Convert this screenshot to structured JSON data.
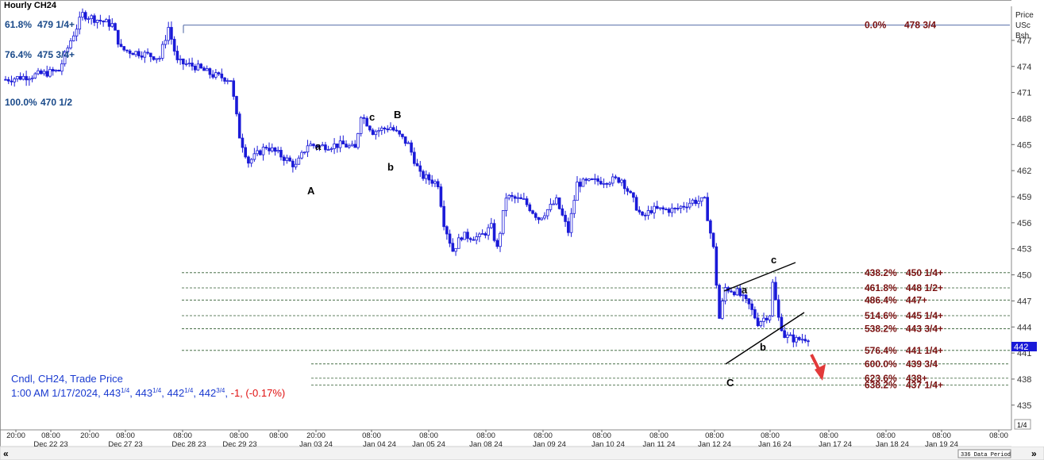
{
  "chart_data": {
    "type": "candlestick",
    "title": "Hourly CH24",
    "price_units": [
      "Price",
      "USc",
      "Bsh"
    ],
    "ylim": [
      433.5,
      481
    ],
    "y_ticks": [
      "477",
      "474",
      "471",
      "468",
      "465",
      "462",
      "459",
      "456",
      "453",
      "450",
      "447",
      "444",
      "441",
      "438",
      "435"
    ],
    "y_tick_values": [
      477,
      474,
      471,
      468,
      465,
      462,
      459,
      456,
      453,
      450,
      447,
      444,
      441,
      438,
      435
    ],
    "current_price": 442.75,
    "current_price_label": "442",
    "time_labels": [
      "20:00",
      "08:00",
      "20:00",
      "08:00",
      "08:00",
      "08:00",
      "08:00",
      "20:00",
      "08:00",
      "08:00",
      "08:00",
      "08:00",
      "08:00",
      "08:00",
      "08:00",
      "08:00",
      "08:00",
      "08:00",
      "08:00",
      "08:00",
      "08:00"
    ],
    "date_labels": [
      "Dec 22 23",
      "Dec 27 23",
      "Dec 28 23",
      "Dec 29 23",
      "Jan 03 24",
      "Jan 04 24",
      "Jan 05 24",
      "Jan 08 24",
      "Jan 09 24",
      "Jan 10 24",
      "Jan 11 24",
      "Jan 12 24",
      "Jan 16 24",
      "Jan 17 24",
      "Jan 18 24",
      "Jan 19 24"
    ],
    "status_text": "336 Data Period",
    "zoom_label": "1/4",
    "info": {
      "line1": "Cndl, CH24, Trade Price",
      "line2_prefix": "1:00 AM 1/17/2024, 443",
      "open_frac": "1/4",
      "high": "443",
      "high_frac": "1/4",
      "low": "442",
      "low_frac": "1/4",
      "close": "442",
      "close_frac": "3/4",
      "change": "-1, (-0.17%)"
    },
    "left_fibs": [
      {
        "pct": "61.8%",
        "price": "479 1/4+"
      },
      {
        "pct": "76.4%",
        "price": "475 3/4+"
      },
      {
        "pct": "100.0%",
        "price": "470 1/2"
      }
    ],
    "top_fib": {
      "pct": "0.0%",
      "price": "478 3/4",
      "value": 478.75
    },
    "right_fibs": [
      {
        "pct": "438.2%",
        "price": "450 1/4+",
        "value": 450.25
      },
      {
        "pct": "461.8%",
        "price": "448 1/2+",
        "value": 448.5
      },
      {
        "pct": "486.4%",
        "price": "447+",
        "value": 447.1
      },
      {
        "pct": "514.6%",
        "price": "445 1/4+",
        "value": 445.3
      },
      {
        "pct": "538.2%",
        "price": "443 3/4+",
        "value": 443.8
      },
      {
        "pct": "576.4%",
        "price": "441 1/4+",
        "value": 441.3
      },
      {
        "pct": "600.0%",
        "price": "439 3/4",
        "value": 439.75
      },
      {
        "pct": "623.6%",
        "price": "438+",
        "value": 438.1
      },
      {
        "pct": "638.2%",
        "price": "437 1/4+",
        "value": 437.3
      }
    ],
    "wave_labels": [
      "A",
      "a",
      "b",
      "c",
      "B",
      "a",
      "b",
      "c",
      "C"
    ],
    "colors": {
      "up_candle": "#1a1ad8",
      "down_candle": "#1a1ad8",
      "fib_text": "#7a1010",
      "left_fib_text": "#1a4a8a",
      "info_text": "#1a3ad0",
      "change_text": "#e01010",
      "arrow": "#e23a3a",
      "price_marker": "#1a1ad8"
    },
    "anchors": [
      [
        0,
        472.5
      ],
      [
        10,
        473.0
      ],
      [
        18,
        473.5
      ],
      [
        22,
        477.0
      ],
      [
        26,
        480.0
      ],
      [
        30,
        479.5
      ],
      [
        36,
        478.8
      ],
      [
        39,
        476.0
      ],
      [
        41,
        475.8
      ],
      [
        46,
        475.5
      ],
      [
        52,
        475.0
      ],
      [
        55,
        478.5
      ],
      [
        58,
        474.5
      ],
      [
        64,
        474.0
      ],
      [
        70,
        473.0
      ],
      [
        76,
        472.5
      ],
      [
        79,
        466.0
      ],
      [
        82,
        463.0
      ],
      [
        88,
        464.8
      ],
      [
        94,
        463.5
      ],
      [
        98,
        462.5
      ],
      [
        102,
        465.0
      ],
      [
        106,
        464.8
      ],
      [
        114,
        465.0
      ],
      [
        118,
        464.5
      ],
      [
        120,
        468.5
      ],
      [
        124,
        466.5
      ],
      [
        130,
        467.0
      ],
      [
        133,
        466.0
      ],
      [
        136,
        465.0
      ],
      [
        140,
        461.5
      ],
      [
        146,
        460.5
      ],
      [
        148,
        456.0
      ],
      [
        151,
        452.8
      ],
      [
        154,
        454.5
      ],
      [
        160,
        454.3
      ],
      [
        164,
        455.5
      ],
      [
        166,
        453.0
      ],
      [
        169,
        459.0
      ],
      [
        175,
        458.5
      ],
      [
        180,
        456.5
      ],
      [
        186,
        458.5
      ],
      [
        190,
        455.0
      ],
      [
        193,
        460.5
      ],
      [
        200,
        460.8
      ],
      [
        208,
        461.0
      ],
      [
        212,
        458.5
      ],
      [
        215,
        456.5
      ],
      [
        218,
        457.5
      ],
      [
        226,
        457.5
      ],
      [
        232,
        458.5
      ],
      [
        236,
        458.5
      ],
      [
        239,
        453.0
      ],
      [
        241,
        445.0
      ],
      [
        243,
        448.5
      ],
      [
        247,
        448.0
      ],
      [
        251,
        446.5
      ],
      [
        254,
        444.5
      ],
      [
        258,
        445.5
      ],
      [
        259,
        449.0
      ],
      [
        261,
        445.0
      ],
      [
        263,
        443.0
      ],
      [
        267,
        442.5
      ],
      [
        271,
        442.8
      ]
    ]
  }
}
